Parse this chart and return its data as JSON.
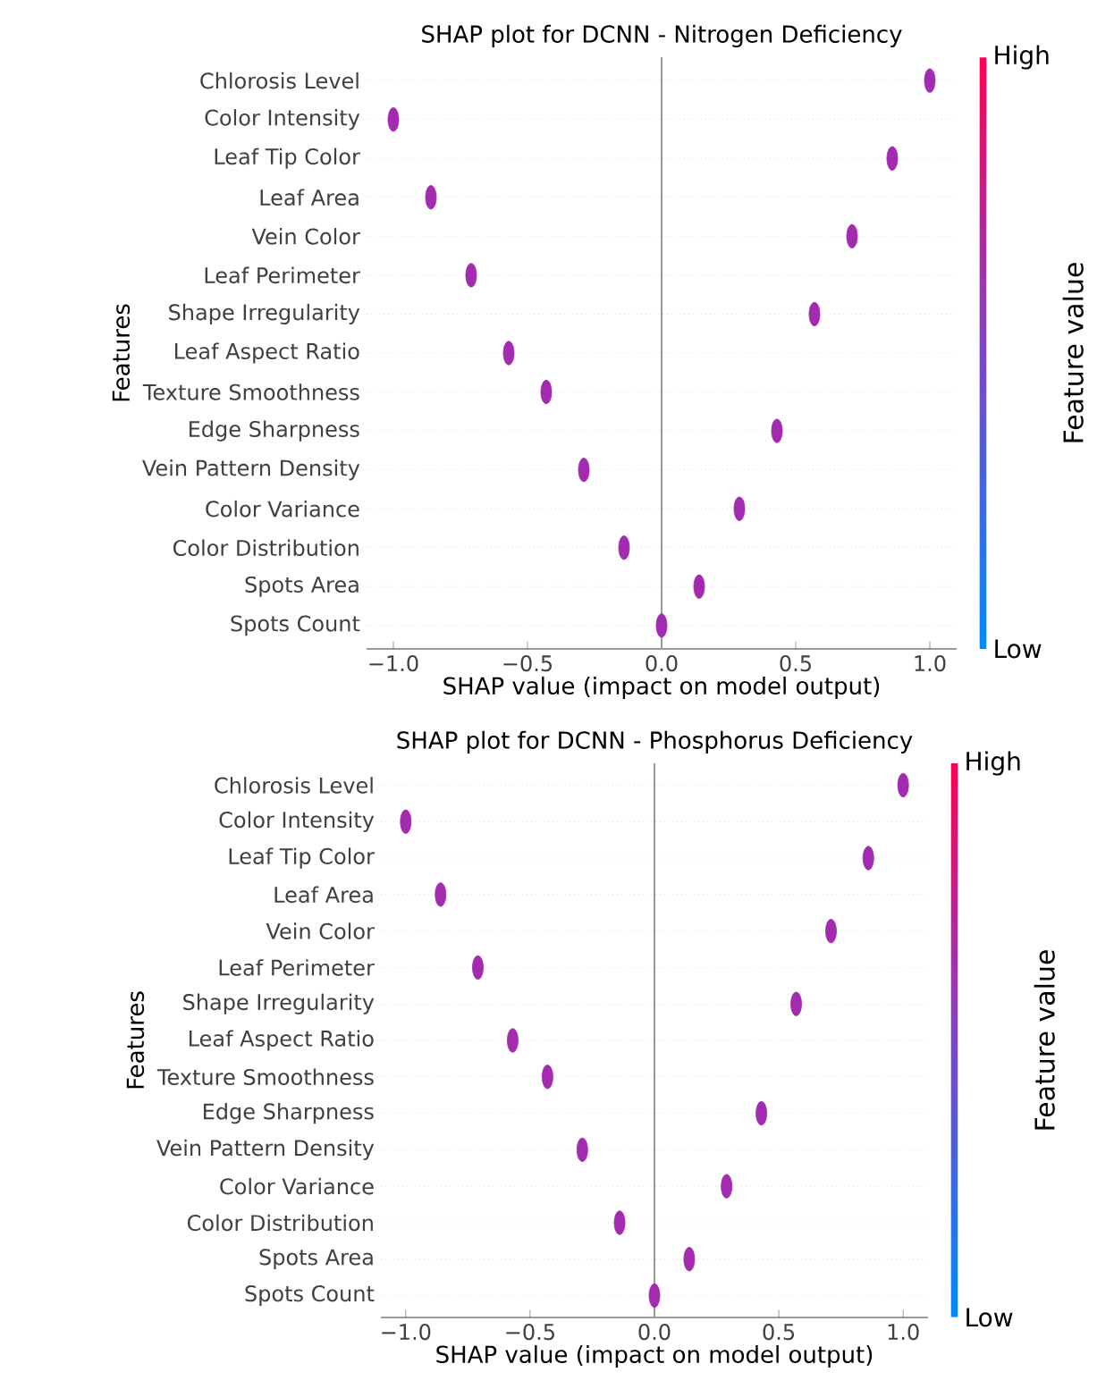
{
  "chart_data": [
    {
      "type": "scatter",
      "orientation": "horizontal",
      "title": "SHAP plot for DCNN - Nitrogen Deficiency",
      "xlabel": "SHAP value (impact on model output)",
      "ylabel": "Features",
      "clabel": "Feature value",
      "categories": [
        "Chlorosis Level",
        "Color Intensity",
        "Leaf Tip Color",
        "Leaf Area",
        "Vein Color",
        "Leaf Perimeter",
        "Shape Irregularity",
        "Leaf Aspect Ratio",
        "Texture Smoothness",
        "Edge Sharpness",
        "Vein Pattern Density",
        "Color Variance",
        "Color Distribution",
        "Spots Area",
        "Spots Count"
      ],
      "values": [
        1.0,
        -1.0,
        0.86,
        -0.86,
        0.71,
        -0.71,
        0.57,
        -0.57,
        -0.43,
        0.43,
        -0.29,
        0.29,
        -0.14,
        0.14,
        0.0
      ],
      "color": "#a22bb0",
      "xlim": [
        -1.1,
        1.1
      ],
      "xticks": [
        {
          "value": -1.0,
          "label": "−1.0"
        },
        {
          "value": -0.5,
          "label": "−0.5"
        },
        {
          "value": 0.0,
          "label": "0.0"
        },
        {
          "value": 0.5,
          "label": "0.5"
        },
        {
          "value": 1.0,
          "label": "1.0"
        }
      ],
      "annotations": [
        "Low",
        "High"
      ],
      "ref_lines": [
        {
          "axis": "x",
          "value": 0,
          "color": "#999999"
        }
      ],
      "grid": "y"
    },
    {
      "type": "scatter",
      "orientation": "horizontal",
      "title": "SHAP plot for DCNN - Phosphorus Deficiency",
      "xlabel": "SHAP value (impact on model output)",
      "ylabel": "Features",
      "clabel": "Feature value",
      "categories": [
        "Chlorosis Level",
        "Color Intensity",
        "Leaf Tip Color",
        "Leaf Area",
        "Vein Color",
        "Leaf Perimeter",
        "Shape Irregularity",
        "Leaf Aspect Ratio",
        "Texture Smoothness",
        "Edge Sharpness",
        "Vein Pattern Density",
        "Color Variance",
        "Color Distribution",
        "Spots Area",
        "Spots Count"
      ],
      "values": [
        1.0,
        -1.0,
        0.86,
        -0.86,
        0.71,
        -0.71,
        0.57,
        -0.57,
        -0.43,
        0.43,
        -0.29,
        0.29,
        -0.14,
        0.14,
        0.0
      ],
      "color": "#a22bb0",
      "xlim": [
        -1.1,
        1.1
      ],
      "xticks": [
        {
          "value": -1.0,
          "label": "−1.0"
        },
        {
          "value": -0.5,
          "label": "−0.5"
        },
        {
          "value": 0.0,
          "label": "0.0"
        },
        {
          "value": 0.5,
          "label": "0.5"
        },
        {
          "value": 1.0,
          "label": "1.0"
        }
      ],
      "annotations": [
        "Low",
        "High"
      ],
      "ref_lines": [
        {
          "axis": "x",
          "value": 0,
          "color": "#999999"
        }
      ],
      "grid": "y"
    }
  ]
}
